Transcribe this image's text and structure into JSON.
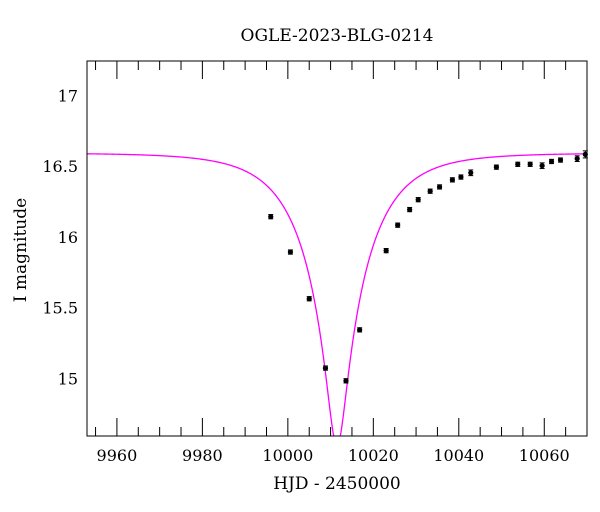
{
  "chart_data": {
    "type": "scatter",
    "title": "OGLE-2023-BLG-0214",
    "xlabel": "HJD - 2450000",
    "ylabel": "I magnitude",
    "xlim": [
      9953,
      10070
    ],
    "ylim": [
      17.25,
      14.6
    ],
    "y_inverted": true,
    "grid": false,
    "x_ticks": [
      9960,
      9980,
      10000,
      10020,
      10040,
      10060
    ],
    "y_ticks": [
      15,
      15.5,
      16,
      16.5,
      17
    ],
    "x_tick_labels": [
      "9960",
      "9980",
      "10000",
      "10020",
      "10040",
      "10060"
    ],
    "y_tick_labels": [
      "15",
      "15.5",
      "16",
      "16.5",
      "17"
    ],
    "model_color": "#ff00ff",
    "point_color": "#000000",
    "model": {
      "t0": 10011.5,
      "u0": 0.15,
      "tE": 14.0,
      "baseline_mag": 16.6
    },
    "points": [
      {
        "x": 9996,
        "y": 16.15,
        "err": 0.015
      },
      {
        "x": 10000.6,
        "y": 15.9,
        "err": 0.015
      },
      {
        "x": 10005,
        "y": 15.57,
        "err": 0.015
      },
      {
        "x": 10008.8,
        "y": 15.08,
        "err": 0.015
      },
      {
        "x": 10013.6,
        "y": 14.99,
        "err": 0.015
      },
      {
        "x": 10016.8,
        "y": 15.35,
        "err": 0.015
      },
      {
        "x": 10023,
        "y": 15.91,
        "err": 0.015
      },
      {
        "x": 10025.7,
        "y": 16.09,
        "err": 0.015
      },
      {
        "x": 10028.5,
        "y": 16.2,
        "err": 0.015
      },
      {
        "x": 10030.5,
        "y": 16.27,
        "err": 0.015
      },
      {
        "x": 10033.3,
        "y": 16.33,
        "err": 0.015
      },
      {
        "x": 10035.5,
        "y": 16.36,
        "err": 0.015
      },
      {
        "x": 10038.5,
        "y": 16.41,
        "err": 0.015
      },
      {
        "x": 10040.5,
        "y": 16.43,
        "err": 0.015
      },
      {
        "x": 10042.8,
        "y": 16.46,
        "err": 0.02
      },
      {
        "x": 10048.8,
        "y": 16.5,
        "err": 0.015
      },
      {
        "x": 10053.8,
        "y": 16.52,
        "err": 0.015
      },
      {
        "x": 10056.7,
        "y": 16.52,
        "err": 0.015
      },
      {
        "x": 10059.5,
        "y": 16.51,
        "err": 0.02
      },
      {
        "x": 10061.7,
        "y": 16.54,
        "err": 0.015
      },
      {
        "x": 10063.8,
        "y": 16.55,
        "err": 0.015
      },
      {
        "x": 10067.7,
        "y": 16.56,
        "err": 0.02
      },
      {
        "x": 10069.6,
        "y": 16.59,
        "err": 0.025
      }
    ]
  }
}
